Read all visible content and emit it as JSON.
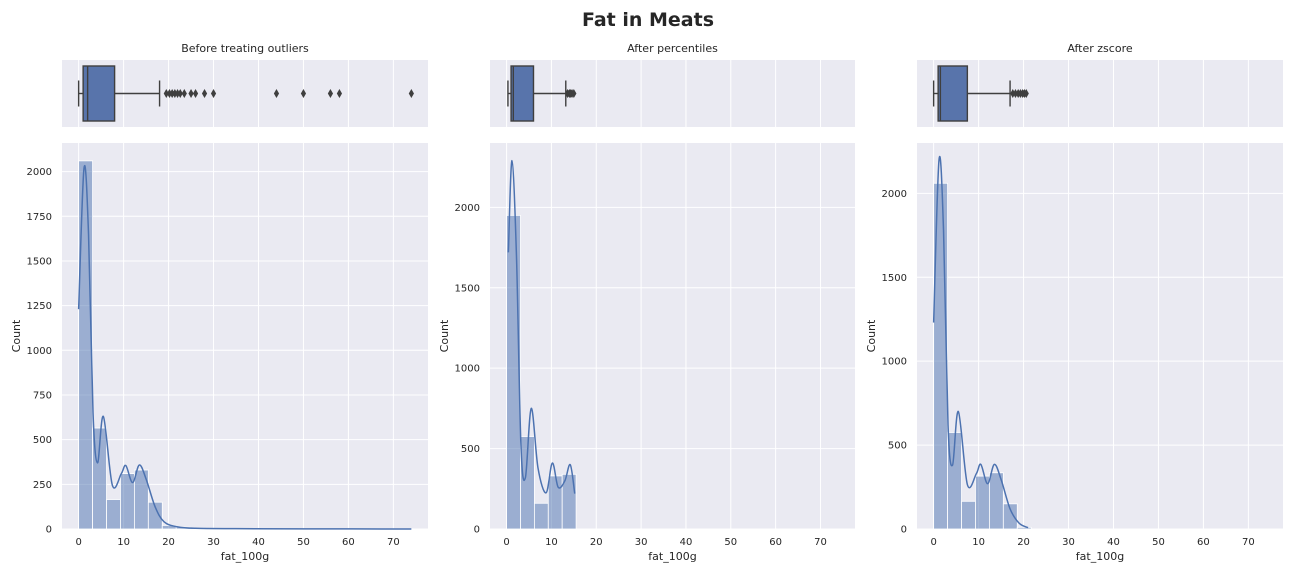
{
  "figure": {
    "title": "Fat in Meats"
  },
  "chart_data": [
    {
      "type": "boxplot+histogram",
      "title": "Before treating outliers",
      "xlabel": "fat_100g",
      "ylabel": "Count",
      "xlim": [
        -3.7,
        77.7
      ],
      "ylim": [
        0,
        2160
      ],
      "xticks": [
        0,
        10,
        20,
        30,
        40,
        50,
        60,
        70
      ],
      "yticks": [
        0,
        250,
        500,
        750,
        1000,
        1250,
        1500,
        1750,
        2000
      ],
      "bin_width": 3.1,
      "bin_start": 0,
      "counts": [
        2060,
        565,
        165,
        310,
        330,
        150,
        20,
        10,
        5,
        3,
        2,
        2,
        1,
        1,
        1,
        1,
        1,
        1,
        1,
        1,
        1,
        1,
        1,
        1
      ],
      "kde": [
        [
          0,
          1230
        ],
        [
          1.2,
          2020
        ],
        [
          2.2,
          1650
        ],
        [
          3.2,
          650
        ],
        [
          4.2,
          370
        ],
        [
          5.5,
          630
        ],
        [
          7.5,
          245
        ],
        [
          9.5,
          310
        ],
        [
          10.5,
          355
        ],
        [
          12,
          260
        ],
        [
          13.5,
          358
        ],
        [
          15,
          280
        ],
        [
          17,
          125
        ],
        [
          19,
          40
        ],
        [
          22,
          12
        ],
        [
          26,
          4
        ],
        [
          35,
          2
        ],
        [
          50,
          1
        ],
        [
          74,
          0
        ]
      ],
      "box": {
        "whislo": 0,
        "q1": 1,
        "med": 2,
        "q3": 8,
        "whishi": 18
      },
      "fliers": [
        19.5,
        20.2,
        20.8,
        21.4,
        22,
        22.6,
        23.5,
        25,
        26,
        28,
        30,
        44,
        50,
        56,
        58,
        74
      ]
    },
    {
      "type": "boxplot+histogram",
      "title": "After percentiles",
      "xlabel": "fat_100g",
      "ylabel": "Count",
      "xlim": [
        -3.7,
        77.7
      ],
      "ylim": [
        0,
        2400
      ],
      "xticks": [
        0,
        10,
        20,
        30,
        40,
        50,
        60,
        70
      ],
      "yticks": [
        0,
        500,
        1000,
        1500,
        2000
      ],
      "bin_width": 3.1,
      "bin_start": 0,
      "counts": [
        1950,
        575,
        160,
        330,
        340
      ],
      "kde": [
        [
          0.4,
          1720
        ],
        [
          1.2,
          2290
        ],
        [
          2.2,
          1700
        ],
        [
          3.2,
          520
        ],
        [
          4.2,
          320
        ],
        [
          5.5,
          750
        ],
        [
          7,
          380
        ],
        [
          8.8,
          225
        ],
        [
          10.2,
          410
        ],
        [
          11.5,
          260
        ],
        [
          13,
          300
        ],
        [
          14.2,
          400
        ],
        [
          15.2,
          220
        ]
      ],
      "box": {
        "whislo": 0.3,
        "q1": 1,
        "med": 1.5,
        "q3": 6,
        "whishi": 13.2
      },
      "fliers": [
        13.6,
        14,
        14.3,
        14.6,
        15
      ]
    },
    {
      "type": "boxplot+histogram",
      "title": "After zscore",
      "xlabel": "fat_100g",
      "ylabel": "Count",
      "xlim": [
        -3.7,
        77.7
      ],
      "ylim": [
        0,
        2300
      ],
      "xticks": [
        0,
        10,
        20,
        30,
        40,
        50,
        60,
        70
      ],
      "yticks": [
        0,
        500,
        1000,
        1500,
        2000
      ],
      "bin_width": 3.1,
      "bin_start": 0,
      "counts": [
        2060,
        575,
        165,
        315,
        335,
        150,
        10
      ],
      "kde": [
        [
          0,
          1230
        ],
        [
          1.2,
          2200
        ],
        [
          2.2,
          1780
        ],
        [
          3.2,
          620
        ],
        [
          4.2,
          380
        ],
        [
          5.5,
          700
        ],
        [
          7.5,
          265
        ],
        [
          9.5,
          330
        ],
        [
          10.5,
          385
        ],
        [
          12,
          270
        ],
        [
          13.5,
          385
        ],
        [
          15,
          295
        ],
        [
          17,
          120
        ],
        [
          19,
          35
        ],
        [
          21,
          8
        ]
      ],
      "box": {
        "whislo": 0,
        "q1": 1,
        "med": 1.5,
        "q3": 7.5,
        "whishi": 17
      },
      "fliers": [
        17.6,
        18.2,
        18.8,
        19.3,
        19.8,
        20.2,
        20.6
      ]
    }
  ]
}
